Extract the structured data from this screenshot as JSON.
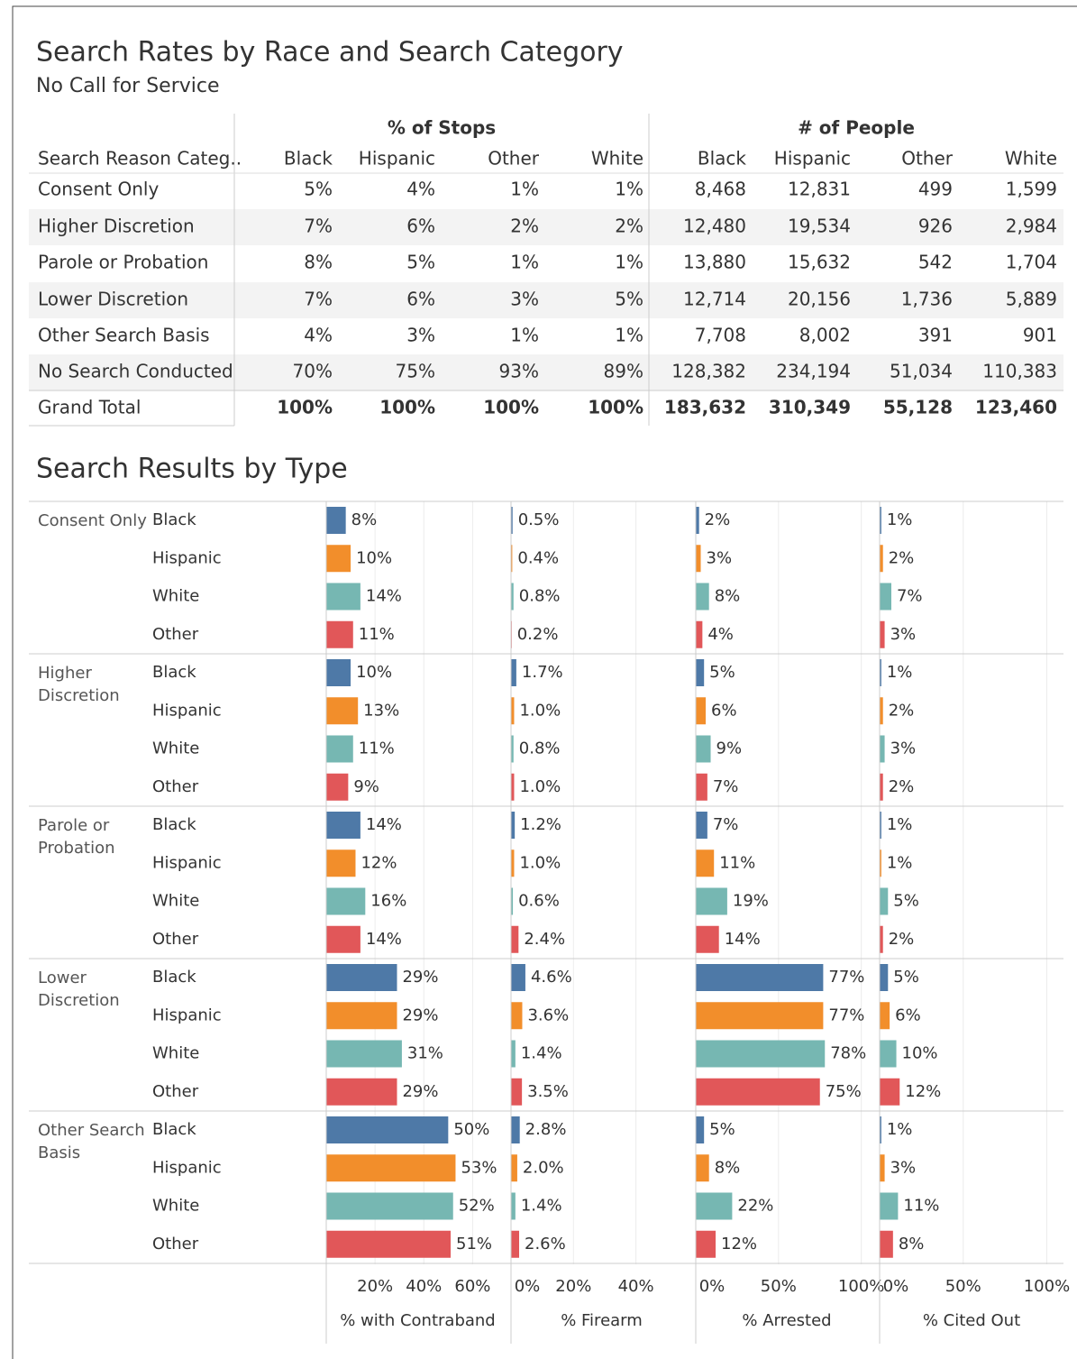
{
  "header": {
    "title": "Search Rates by Race and Search Category",
    "subtitle": "No Call for Service"
  },
  "race_colors": {
    "Black": "#4e79a7",
    "Hispanic": "#f28e2b",
    "Other": "#e15759",
    "White": "#76b7b2"
  },
  "table": {
    "column_groups": [
      "% of Stops",
      "# of People"
    ],
    "row_header": "Search Reason Categ..",
    "columns": [
      "Black",
      "Hispanic",
      "Other",
      "White",
      "Black",
      "Hispanic",
      "Other",
      "White"
    ],
    "rows": [
      {
        "label": "Consent Only",
        "cells": [
          "5%",
          "4%",
          "1%",
          "1%",
          "8,468",
          "12,831",
          "499",
          "1,599"
        ]
      },
      {
        "label": "Higher Discretion",
        "cells": [
          "7%",
          "6%",
          "2%",
          "2%",
          "12,480",
          "19,534",
          "926",
          "2,984"
        ]
      },
      {
        "label": "Parole or Probation",
        "cells": [
          "8%",
          "5%",
          "1%",
          "1%",
          "13,880",
          "15,632",
          "542",
          "1,704"
        ]
      },
      {
        "label": "Lower Discretion",
        "cells": [
          "7%",
          "6%",
          "3%",
          "5%",
          "12,714",
          "20,156",
          "1,736",
          "5,889"
        ]
      },
      {
        "label": "Other Search Basis",
        "cells": [
          "4%",
          "3%",
          "1%",
          "1%",
          "7,708",
          "8,002",
          "391",
          "901"
        ]
      },
      {
        "label": "No Search Conducted",
        "cells": [
          "70%",
          "75%",
          "93%",
          "89%",
          "128,382",
          "234,194",
          "51,034",
          "110,383"
        ]
      },
      {
        "label": "Grand Total",
        "cells": [
          "100%",
          "100%",
          "100%",
          "100%",
          "183,632",
          "310,349",
          "55,128",
          "123,460"
        ]
      }
    ]
  },
  "chart_data": {
    "type": "bar",
    "title": "Search Results by Type",
    "groups": [
      "Consent Only",
      "Higher Discretion",
      "Parole or Probation",
      "Lower Discretion",
      "Other Search Basis"
    ],
    "categories": [
      "Black",
      "Hispanic",
      "White",
      "Other"
    ],
    "panels": [
      {
        "name": "% with Contraband",
        "xlim": [
          0,
          75
        ],
        "xticks": [
          {
            "value": 20,
            "label": "20%"
          },
          {
            "value": 40,
            "label": "40%"
          },
          {
            "value": 60,
            "label": "60%"
          }
        ],
        "values": [
          8,
          10,
          14,
          11,
          10,
          13,
          11,
          9,
          14,
          12,
          16,
          14,
          29,
          29,
          31,
          29,
          50,
          53,
          52,
          51
        ],
        "value_labels": [
          "8%",
          "10%",
          "14%",
          "11%",
          "10%",
          "13%",
          "11%",
          "9%",
          "14%",
          "12%",
          "16%",
          "14%",
          "29%",
          "29%",
          "31%",
          "29%",
          "50%",
          "53%",
          "52%",
          "51%"
        ]
      },
      {
        "name": "% Firearm",
        "xlim": [
          0,
          58
        ],
        "xticks": [
          {
            "value": 0,
            "label": "0%"
          },
          {
            "value": 20,
            "label": "20%"
          },
          {
            "value": 40,
            "label": "40%"
          }
        ],
        "values": [
          0.5,
          0.4,
          0.8,
          0.2,
          1.7,
          1.0,
          0.8,
          1.0,
          1.2,
          1.0,
          0.6,
          2.4,
          4.6,
          3.6,
          1.4,
          3.5,
          2.8,
          2.0,
          1.4,
          2.6
        ],
        "value_labels": [
          "0.5%",
          "0.4%",
          "0.8%",
          "0.2%",
          "1.7%",
          "1.0%",
          "0.8%",
          "1.0%",
          "1.2%",
          "1.0%",
          "0.6%",
          "2.4%",
          "4.6%",
          "3.6%",
          "1.4%",
          "3.5%",
          "2.8%",
          "2.0%",
          "1.4%",
          "2.6%"
        ]
      },
      {
        "name": "% Arrested",
        "xlim": [
          0,
          110
        ],
        "xticks": [
          {
            "value": 0,
            "label": "0%"
          },
          {
            "value": 50,
            "label": "50%"
          },
          {
            "value": 100,
            "label": "100%"
          }
        ],
        "values": [
          2,
          3,
          8,
          4,
          5,
          6,
          9,
          7,
          7,
          11,
          19,
          14,
          77,
          77,
          78,
          75,
          5,
          8,
          22,
          12
        ],
        "value_labels": [
          "2%",
          "3%",
          "8%",
          "4%",
          "5%",
          "6%",
          "9%",
          "7%",
          "7%",
          "11%",
          "19%",
          "14%",
          "77%",
          "77%",
          "78%",
          "75%",
          "5%",
          "8%",
          "22%",
          "12%"
        ]
      },
      {
        "name": "% Cited Out",
        "xlim": [
          0,
          110
        ],
        "xticks": [
          {
            "value": 0,
            "label": "0%"
          },
          {
            "value": 50,
            "label": "50%"
          },
          {
            "value": 100,
            "label": "100%"
          }
        ],
        "values": [
          1,
          2,
          7,
          3,
          1,
          2,
          3,
          2,
          1,
          1,
          5,
          2,
          5,
          6,
          10,
          12,
          1,
          3,
          11,
          8
        ],
        "value_labels": [
          "1%",
          "2%",
          "7%",
          "3%",
          "1%",
          "2%",
          "3%",
          "2%",
          "1%",
          "1%",
          "5%",
          "2%",
          "5%",
          "6%",
          "10%",
          "12%",
          "1%",
          "3%",
          "11%",
          "8%"
        ]
      }
    ]
  }
}
